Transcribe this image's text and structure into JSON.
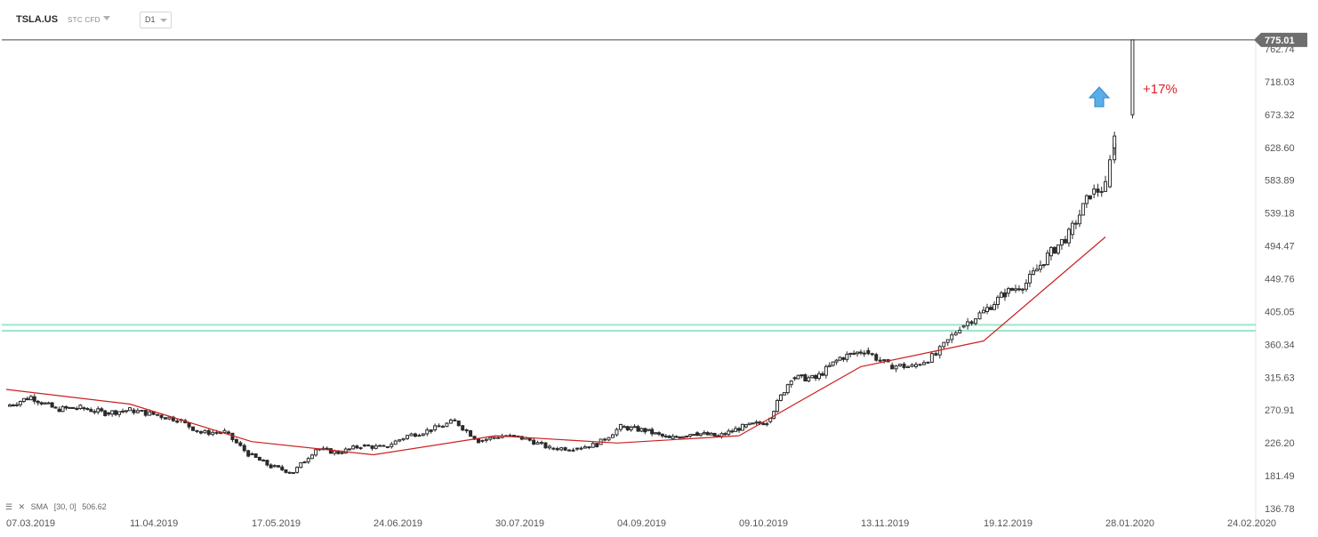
{
  "toolbar": {
    "symbol": "TSLA.US",
    "instrument_type": "STC CFD",
    "timeframe": "D1"
  },
  "indicator_legend": {
    "name": "SMA",
    "params": "[30,  0]",
    "value": "506.62"
  },
  "annotation": {
    "label": "+17%",
    "color": "#e0202a",
    "arrow_color": "#5aaee8"
  },
  "price_tag": "775.01",
  "colors": {
    "sma": "#cc1f1f",
    "support_band": "#9ee6cc",
    "candle": "#2b2b2b",
    "price_line": "#444444",
    "price_tag_bg": "#6e6e6e"
  },
  "chart_data": {
    "type": "candlestick",
    "title": "",
    "y_ticks": [
      "762.74",
      "718.03",
      "673.32",
      "628.60",
      "583.89",
      "539.18",
      "494.47",
      "449.76",
      "405.05",
      "360.34",
      "315.63",
      "270.91",
      "226.20",
      "181.49",
      "136.78"
    ],
    "y_tick_values": [
      762.74,
      718.03,
      673.32,
      628.6,
      583.89,
      539.18,
      494.47,
      449.76,
      405.05,
      360.34,
      315.63,
      270.91,
      226.2,
      181.49,
      136.78
    ],
    "x_ticks": [
      "07.03.2019",
      "11.04.2019",
      "17.05.2019",
      "24.06.2019",
      "30.07.2019",
      "04.09.2019",
      "09.10.2019",
      "13.11.2019",
      "19.12.2019",
      "28.01.2020",
      "24.02.2020"
    ],
    "ylim": [
      136.78,
      800
    ],
    "current_price": 775.01,
    "support_band": [
      379,
      387
    ],
    "close_points": [
      [
        "07.03.2019",
        276
      ],
      [
        "14.03.2019",
        289
      ],
      [
        "21.03.2019",
        272
      ],
      [
        "28.03.2019",
        274
      ],
      [
        "04.04.2019",
        267
      ],
      [
        "11.04.2019",
        271
      ],
      [
        "18.04.2019",
        265
      ],
      [
        "25.04.2019",
        258
      ],
      [
        "02.05.2019",
        240
      ],
      [
        "09.05.2019",
        241
      ],
      [
        "16.05.2019",
        211
      ],
      [
        "23.05.2019",
        194
      ],
      [
        "30.05.2019",
        186
      ],
      [
        "06.06.2019",
        218
      ],
      [
        "13.06.2019",
        213
      ],
      [
        "20.06.2019",
        222
      ],
      [
        "27.06.2019",
        220
      ],
      [
        "04.07.2019",
        236
      ],
      [
        "11.07.2019",
        244
      ],
      [
        "18.07.2019",
        256
      ],
      [
        "25.07.2019",
        229
      ],
      [
        "01.08.2019",
        236
      ],
      [
        "08.08.2019",
        232
      ],
      [
        "15.08.2019",
        219
      ],
      [
        "22.08.2019",
        219
      ],
      [
        "29.08.2019",
        224
      ],
      [
        "05.09.2019",
        248
      ],
      [
        "12.09.2019",
        243
      ],
      [
        "19.09.2019",
        232
      ],
      [
        "26.09.2019",
        240
      ],
      [
        "03.10.2019",
        235
      ],
      [
        "10.10.2019",
        248
      ],
      [
        "17.10.2019",
        255
      ],
      [
        "24.10.2019",
        315
      ],
      [
        "31.10.2019",
        314
      ],
      [
        "07.11.2019",
        342
      ],
      [
        "14.11.2019",
        352
      ],
      [
        "21.11.2019",
        332
      ],
      [
        "28.11.2019",
        330
      ],
      [
        "05.12.2019",
        346
      ],
      [
        "12.12.2019",
        384
      ],
      [
        "19.12.2019",
        405
      ],
      [
        "26.12.2019",
        430
      ],
      [
        "02.01.2020",
        444
      ],
      [
        "09.01.2020",
        481
      ],
      [
        "16.01.2020",
        510
      ],
      [
        "23.01.2020",
        565
      ],
      [
        "28.01.2020",
        575
      ],
      [
        "30.01.2020",
        640
      ],
      [
        "03.02.2020",
        775
      ]
    ],
    "sma_points": [
      [
        "07.03.2019",
        299
      ],
      [
        "11.04.2019",
        279
      ],
      [
        "17.05.2019",
        228
      ],
      [
        "24.06.2019",
        210
      ],
      [
        "30.07.2019",
        236
      ],
      [
        "04.09.2019",
        226
      ],
      [
        "09.10.2019",
        236
      ],
      [
        "13.11.2019",
        330
      ],
      [
        "19.12.2019",
        365
      ],
      [
        "28.01.2020",
        506.62
      ]
    ]
  }
}
